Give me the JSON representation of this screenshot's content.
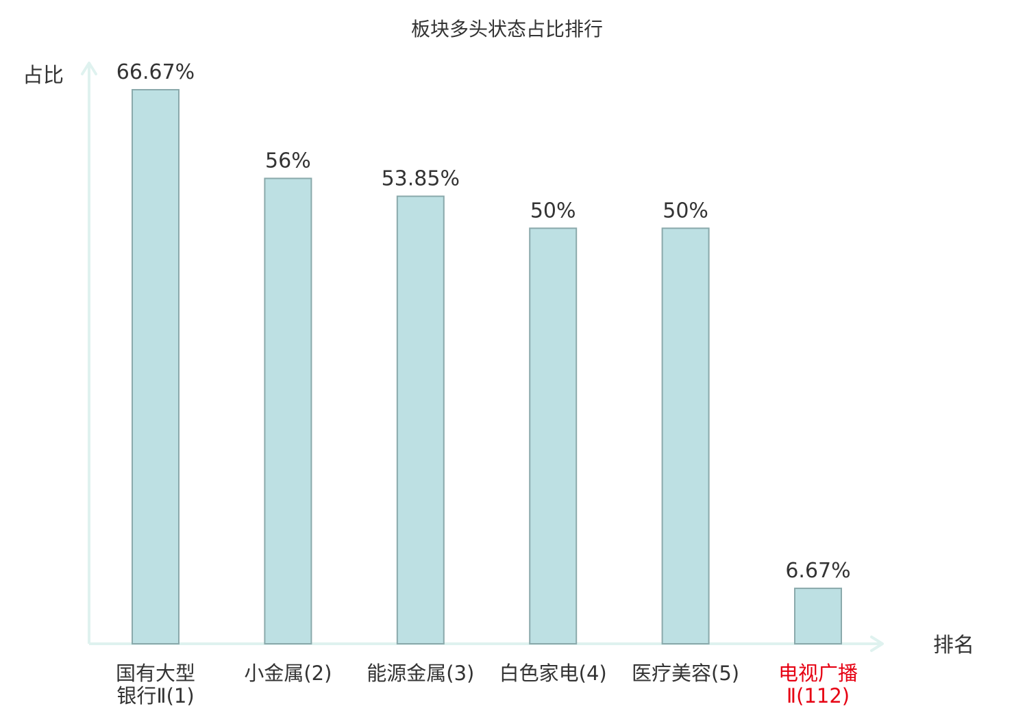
{
  "chart_data": {
    "type": "bar",
    "title": "板块多头状态占比排行",
    "ylabel": "占比",
    "xlabel": "排名",
    "categories": [
      [
        "国有大型",
        "银行Ⅱ(1)"
      ],
      [
        "小金属(2)"
      ],
      [
        "能源金属(3)"
      ],
      [
        "白色家电(4)"
      ],
      [
        "医疗美容(5)"
      ],
      [
        "电视广播",
        "Ⅱ(112)"
      ]
    ],
    "highlight": [
      false,
      false,
      false,
      false,
      false,
      true
    ],
    "values": [
      66.67,
      56,
      53.85,
      50,
      50,
      6.67
    ],
    "value_labels": [
      "66.67%",
      "56%",
      "53.85%",
      "50%",
      "50%",
      "6.67%"
    ],
    "ylim": [
      0,
      66.67
    ],
    "grid": false,
    "legend": "none",
    "colors": {
      "bar_fill": "#bde0e3",
      "bar_stroke": "#8aa9ab",
      "axis": "#dff2ef",
      "text": "#333333",
      "highlight_text": "#e60012"
    }
  }
}
